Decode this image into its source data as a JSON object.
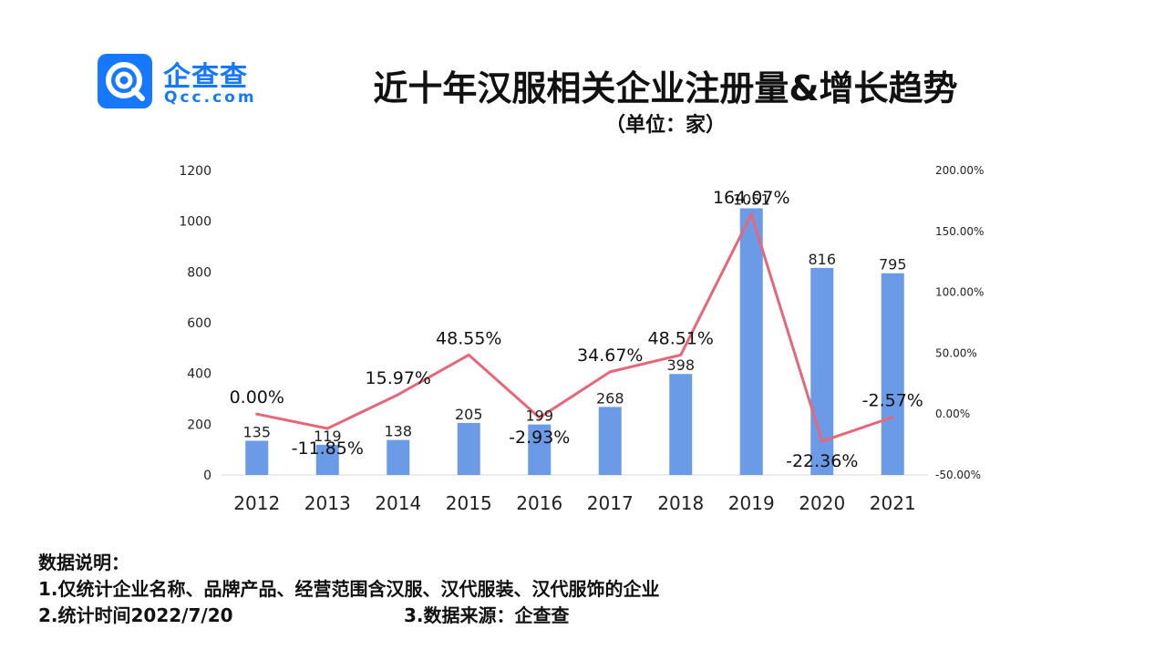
{
  "logo": {
    "cn": "企查查",
    "en": "Qcc.com",
    "brand_color": "#1677ff"
  },
  "chart_data": {
    "type": "bar",
    "title": "近十年汉服相关企业注册量&增长趋势",
    "subtitle": "（单位：家）",
    "categories": [
      "2012",
      "2013",
      "2014",
      "2015",
      "2016",
      "2017",
      "2018",
      "2019",
      "2020",
      "2021"
    ],
    "series": [
      {
        "type": "bar",
        "axis": "left",
        "color": "#6b9be6",
        "values": [
          135,
          119,
          138,
          205,
          199,
          268,
          398,
          1051,
          816,
          795
        ],
        "labels": [
          "135",
          "119",
          "138",
          "205",
          "199",
          "268",
          "398",
          "1051",
          "816",
          "795"
        ]
      },
      {
        "type": "line",
        "axis": "right",
        "color": "#e6677a",
        "values": [
          0.0,
          -11.85,
          15.97,
          48.55,
          -2.93,
          34.67,
          48.51,
          164.07,
          -22.36,
          -2.57
        ],
        "labels": [
          "0.00%",
          "-11.85%",
          "15.97%",
          "48.55%",
          "-2.93%",
          "34.67%",
          "48.51%",
          "164.07%",
          "-22.36%",
          "-2.57%"
        ]
      }
    ],
    "left_axis": {
      "ylim": [
        0,
        1200
      ],
      "ticks": [
        "0",
        "200",
        "400",
        "600",
        "800",
        "1000",
        "1200"
      ]
    },
    "right_axis": {
      "ylim": [
        -50,
        200
      ],
      "ticks": [
        "-50.00%",
        "0.00%",
        "50.00%",
        "100.00%",
        "150.00%",
        "200.00%"
      ]
    },
    "grid": false,
    "legend": "none"
  },
  "notes": {
    "heading": "数据说明：",
    "line1": "1.仅统计企业名称、品牌产品、经营范围含汉服、汉代服装、汉代服饰的企业",
    "line2": "2.统计时间2022/7/20",
    "source": "3.数据来源：企查查"
  }
}
